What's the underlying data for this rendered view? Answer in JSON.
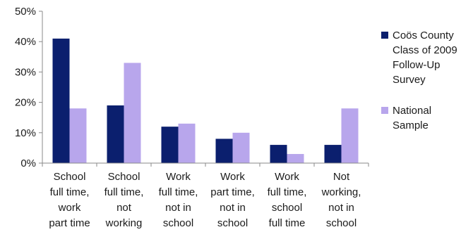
{
  "chart_data": {
    "type": "bar",
    "categories": [
      [
        "School",
        "full time,",
        "work",
        "part time"
      ],
      [
        "School",
        "full time,",
        "not",
        "working"
      ],
      [
        "Work",
        "full time,",
        "not in",
        "school"
      ],
      [
        "Work",
        "part time,",
        "not in",
        "school"
      ],
      [
        "Work",
        "full time,",
        "school",
        "full time"
      ],
      [
        "Not",
        "working,",
        "not in",
        "school"
      ]
    ],
    "series": [
      {
        "name": [
          "Coös County",
          "Class of 2009",
          "Follow-Up",
          "Survey"
        ],
        "color": "#0b1f6e",
        "values": [
          41,
          19,
          12,
          8,
          6,
          6
        ]
      },
      {
        "name": [
          "National",
          "Sample"
        ],
        "color": "#b8a6ec",
        "values": [
          18,
          33,
          13,
          10,
          3,
          18
        ]
      }
    ],
    "yticks": [
      "0%",
      "10%",
      "20%",
      "30%",
      "40%",
      "50%"
    ],
    "ylim": [
      0,
      50
    ],
    "grid": false,
    "legend": "right"
  }
}
